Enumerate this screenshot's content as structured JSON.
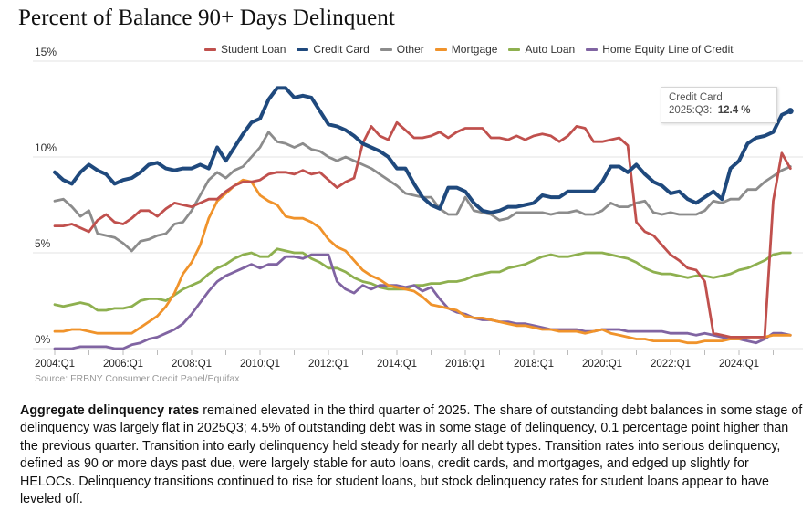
{
  "chart_data": {
    "type": "line",
    "title": "Percent of Balance 90+ Days Delinquent",
    "xlabel": "",
    "ylabel": "",
    "ylim": [
      0,
      15
    ],
    "y_ticks": [
      "0%",
      "5%",
      "10%",
      "15%"
    ],
    "y_tick_values": [
      0,
      5,
      10,
      15
    ],
    "x_tick_labels": [
      "2004:Q1",
      "2006:Q1",
      "2008:Q1",
      "2010:Q1",
      "2012:Q1",
      "2014:Q1",
      "2016:Q1",
      "2018:Q1",
      "2020:Q1",
      "2022:Q1",
      "2024:Q1"
    ],
    "x_start": "2004:Q1",
    "x_end": "2025:Q3",
    "grid": true,
    "legend_position": "top-right",
    "source": "Source: FRBNY Consumer Credit Panel/Equifax",
    "tooltip": {
      "series": "Credit Card",
      "period": "2025:Q3:",
      "value": "12.4 %"
    },
    "series": [
      {
        "name": "Student Loan",
        "color": "#c0504d",
        "values": [
          6.4,
          6.4,
          6.5,
          6.3,
          6.1,
          6.7,
          7.0,
          6.6,
          6.5,
          6.8,
          7.2,
          7.2,
          6.9,
          7.3,
          7.6,
          7.5,
          7.4,
          7.6,
          7.8,
          7.8,
          8.2,
          8.5,
          8.7,
          8.7,
          8.8,
          9.1,
          9.2,
          9.2,
          9.1,
          9.3,
          9.1,
          9.2,
          8.8,
          8.4,
          8.7,
          8.9,
          10.7,
          11.6,
          11.1,
          10.9,
          11.8,
          11.4,
          11.0,
          11.0,
          11.1,
          11.3,
          11.0,
          11.3,
          11.5,
          11.5,
          11.5,
          11.0,
          11.0,
          10.9,
          11.1,
          10.9,
          11.1,
          11.2,
          11.1,
          10.8,
          11.1,
          11.6,
          11.5,
          10.8,
          10.8,
          10.9,
          11.0,
          10.6,
          6.6,
          6.1,
          5.9,
          5.4,
          4.9,
          4.6,
          4.2,
          4.1,
          3.5,
          0.8,
          0.7,
          0.6,
          0.6,
          0.6,
          0.6,
          0.6,
          7.7,
          10.2,
          9.4
        ]
      },
      {
        "name": "Credit Card",
        "color": "#1f497d",
        "values": [
          9.2,
          8.8,
          8.6,
          9.2,
          9.6,
          9.3,
          9.1,
          8.6,
          8.8,
          8.9,
          9.2,
          9.6,
          9.7,
          9.4,
          9.3,
          9.4,
          9.4,
          9.6,
          9.4,
          10.5,
          9.8,
          10.5,
          11.2,
          11.8,
          12.0,
          13.0,
          13.6,
          13.6,
          13.1,
          13.2,
          13.1,
          12.4,
          11.7,
          11.6,
          11.4,
          11.1,
          10.7,
          10.5,
          10.3,
          10.0,
          9.4,
          9.4,
          8.6,
          7.9,
          7.5,
          7.3,
          8.4,
          8.4,
          8.2,
          7.6,
          7.2,
          7.1,
          7.2,
          7.4,
          7.4,
          7.5,
          7.6,
          8.0,
          7.9,
          7.9,
          8.2,
          8.2,
          8.2,
          8.2,
          8.7,
          9.5,
          9.5,
          9.2,
          9.6,
          9.1,
          8.7,
          8.5,
          8.1,
          8.2,
          7.8,
          7.6,
          7.9,
          8.2,
          7.8,
          9.4,
          9.8,
          10.7,
          11.0,
          11.1,
          11.3,
          12.2,
          12.4
        ]
      },
      {
        "name": "Other",
        "color": "#8c8c8c",
        "values": [
          7.7,
          7.8,
          7.4,
          6.9,
          7.2,
          6.0,
          5.9,
          5.8,
          5.5,
          5.1,
          5.6,
          5.7,
          5.9,
          6.0,
          6.5,
          6.6,
          7.2,
          8.0,
          8.8,
          9.2,
          8.9,
          9.3,
          9.5,
          10.0,
          10.5,
          11.3,
          10.8,
          10.7,
          10.5,
          10.7,
          10.4,
          10.3,
          10.0,
          9.8,
          10.0,
          9.8,
          9.6,
          9.4,
          9.1,
          8.8,
          8.5,
          8.1,
          8.0,
          7.9,
          7.9,
          7.3,
          7.0,
          7.0,
          7.9,
          7.2,
          7.1,
          7.0,
          6.7,
          6.8,
          7.1,
          7.1,
          7.1,
          7.1,
          7.0,
          7.1,
          7.1,
          7.2,
          7.0,
          7.0,
          7.2,
          7.6,
          7.4,
          7.4,
          7.6,
          7.7,
          7.1,
          7.0,
          7.1,
          7.0,
          7.0,
          7.0,
          7.2,
          7.7,
          7.6,
          7.8,
          7.8,
          8.3,
          8.3,
          8.7,
          9.0,
          9.3,
          9.5
        ]
      },
      {
        "name": "Mortgage",
        "color": "#f0932b",
        "values": [
          0.9,
          0.9,
          1.0,
          1.0,
          0.9,
          0.8,
          0.8,
          0.8,
          0.8,
          0.8,
          1.1,
          1.4,
          1.7,
          2.2,
          2.9,
          3.9,
          4.5,
          5.4,
          6.8,
          7.7,
          8.1,
          8.5,
          8.8,
          8.7,
          8.0,
          7.7,
          7.5,
          6.9,
          6.8,
          6.8,
          6.6,
          6.3,
          5.7,
          5.3,
          5.1,
          4.6,
          4.1,
          3.8,
          3.6,
          3.3,
          3.2,
          3.1,
          3.0,
          2.7,
          2.3,
          2.2,
          2.1,
          2.0,
          1.7,
          1.6,
          1.6,
          1.5,
          1.4,
          1.3,
          1.2,
          1.2,
          1.1,
          1.0,
          1.0,
          0.9,
          0.9,
          0.9,
          0.8,
          0.9,
          1.0,
          0.8,
          0.7,
          0.6,
          0.5,
          0.5,
          0.4,
          0.4,
          0.4,
          0.4,
          0.3,
          0.3,
          0.4,
          0.4,
          0.4,
          0.5,
          0.5,
          0.6,
          0.6,
          0.6,
          0.7,
          0.7,
          0.7
        ]
      },
      {
        "name": "Auto Loan",
        "color": "#8eb04f",
        "values": [
          2.3,
          2.2,
          2.3,
          2.4,
          2.3,
          2.0,
          2.0,
          2.1,
          2.1,
          2.2,
          2.5,
          2.6,
          2.6,
          2.5,
          2.8,
          3.1,
          3.3,
          3.5,
          3.9,
          4.2,
          4.4,
          4.7,
          4.9,
          5.0,
          4.8,
          4.8,
          5.2,
          5.1,
          5.0,
          5.0,
          4.7,
          4.5,
          4.2,
          4.2,
          4.0,
          3.7,
          3.5,
          3.4,
          3.2,
          3.1,
          3.1,
          3.1,
          3.3,
          3.3,
          3.4,
          3.4,
          3.5,
          3.5,
          3.6,
          3.8,
          3.9,
          4.0,
          4.0,
          4.2,
          4.3,
          4.4,
          4.6,
          4.8,
          4.9,
          4.8,
          4.8,
          4.9,
          5.0,
          5.0,
          5.0,
          4.9,
          4.8,
          4.7,
          4.5,
          4.2,
          4.0,
          3.9,
          3.9,
          3.8,
          3.7,
          3.8,
          3.8,
          3.7,
          3.8,
          3.9,
          4.1,
          4.2,
          4.4,
          4.6,
          4.9,
          5.0,
          5.0
        ]
      },
      {
        "name": "Home Equity Line of Credit",
        "color": "#8064a2",
        "values": [
          0.0,
          0.0,
          0.0,
          0.1,
          0.1,
          0.1,
          0.1,
          0.0,
          0.0,
          0.2,
          0.3,
          0.5,
          0.6,
          0.8,
          1.0,
          1.3,
          1.8,
          2.4,
          3.0,
          3.5,
          3.8,
          4.0,
          4.2,
          4.4,
          4.2,
          4.4,
          4.4,
          4.8,
          4.8,
          4.7,
          4.9,
          4.9,
          4.9,
          3.5,
          3.1,
          2.9,
          3.3,
          3.1,
          3.3,
          3.3,
          3.3,
          3.2,
          3.3,
          3.0,
          3.2,
          2.6,
          2.1,
          1.9,
          1.8,
          1.6,
          1.5,
          1.5,
          1.4,
          1.4,
          1.3,
          1.3,
          1.2,
          1.1,
          1.0,
          1.0,
          1.0,
          1.0,
          0.9,
          0.9,
          1.0,
          1.0,
          1.0,
          0.9,
          0.9,
          0.9,
          0.9,
          0.9,
          0.8,
          0.8,
          0.8,
          0.7,
          0.8,
          0.7,
          0.6,
          0.5,
          0.5,
          0.4,
          0.3,
          0.5,
          0.8,
          0.8,
          0.7
        ]
      }
    ]
  },
  "body_text": {
    "bold_lead": "Aggregate delinquency rates",
    "rest": " remained elevated in the third quarter of 2025. The share of outstanding debt balances in some stage of delinquency was largely flat in 2025Q3; 4.5% of outstanding debt was in some stage of delinquency, 0.1 percentage point higher than the previous quarter. Transition into early delinquency held steady for nearly all debt types. Transition rates into serious delinquency, defined as 90 or more days past due, were largely stable for auto loans, credit cards, and mortgages, and edged up slightly for HELOCs. Delinquency transitions continued to rise for student loans, but stock delinquency rates for student loans appear to have leveled off."
  }
}
